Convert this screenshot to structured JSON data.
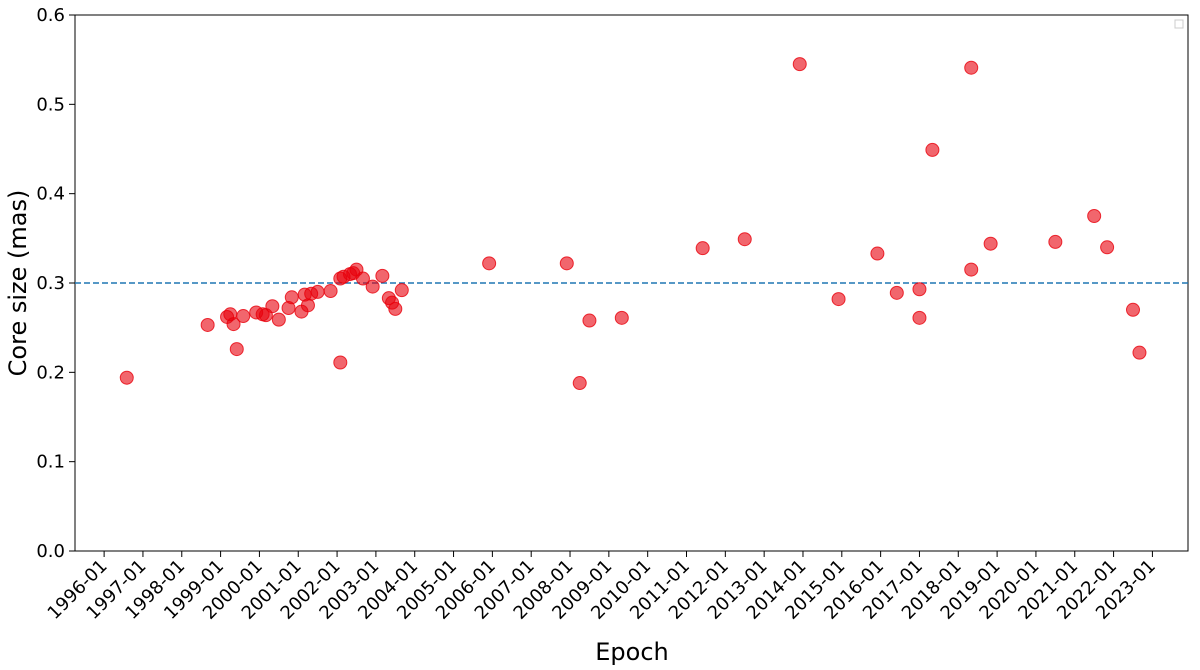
{
  "chart_data": {
    "type": "scatter",
    "x_label": "Epoch",
    "y_label": "Core size (mas)",
    "xlim": [
      "1995-04",
      "2023-12"
    ],
    "xticks": [
      "1996-01",
      "1997-01",
      "1998-01",
      "1999-01",
      "2000-01",
      "2001-01",
      "2002-01",
      "2003-01",
      "2004-01",
      "2005-01",
      "2006-01",
      "2007-01",
      "2008-01",
      "2009-01",
      "2010-01",
      "2011-01",
      "2012-01",
      "2013-01",
      "2014-01",
      "2015-01",
      "2016-01",
      "2017-01",
      "2018-01",
      "2019-01",
      "2020-01",
      "2021-01",
      "2022-01",
      "2023-01"
    ],
    "ylim": [
      0,
      0.6
    ],
    "yticks": [
      {
        "value": 0,
        "label": "0.0"
      },
      0.1,
      0.2,
      0.3,
      0.4,
      0.5,
      0.6
    ],
    "reference_line": 0.3,
    "reference_color": "#1f77b4",
    "color": "#e8000b",
    "x": [
      "1996-08",
      "1998-09",
      "1999-03",
      "1999-04",
      "1999-05",
      "1999-06",
      "1999-08",
      "1999-12",
      "2000-02",
      "2000-03",
      "2000-05",
      "2000-07",
      "2000-10",
      "2000-11",
      "2001-02",
      "2001-03",
      "2001-04",
      "2001-05",
      "2001-07",
      "2001-11",
      "2002-02",
      "2002-02",
      "2002-03",
      "2002-05",
      "2002-06",
      "2002-07",
      "2002-09",
      "2002-12",
      "2003-03",
      "2003-05",
      "2003-06",
      "2003-07",
      "2003-09",
      "2005-12",
      "2007-12",
      "2008-04",
      "2008-07",
      "2009-05",
      "2011-06",
      "2012-07",
      "2013-12",
      "2014-12",
      "2015-12",
      "2016-06",
      "2017-01",
      "2017-01",
      "2017-05",
      "2018-05",
      "2018-05",
      "2018-11",
      "2020-07",
      "2021-07",
      "2021-11",
      "2022-07",
      "2022-09"
    ],
    "values": [
      0.194,
      0.253,
      0.262,
      0.265,
      0.254,
      0.226,
      0.263,
      0.267,
      0.265,
      0.264,
      0.274,
      0.259,
      0.272,
      0.284,
      0.268,
      0.287,
      0.275,
      0.288,
      0.29,
      0.291,
      0.211,
      0.305,
      0.307,
      0.31,
      0.311,
      0.315,
      0.305,
      0.296,
      0.308,
      0.283,
      0.278,
      0.271,
      0.292,
      0.322,
      0.322,
      0.188,
      0.258,
      0.261,
      0.339,
      0.349,
      0.545,
      0.282,
      0.333,
      0.289,
      0.293,
      0.261,
      0.449,
      0.315,
      0.541,
      0.344,
      0.346,
      0.375,
      0.34,
      0.27,
      0.222
    ]
  }
}
